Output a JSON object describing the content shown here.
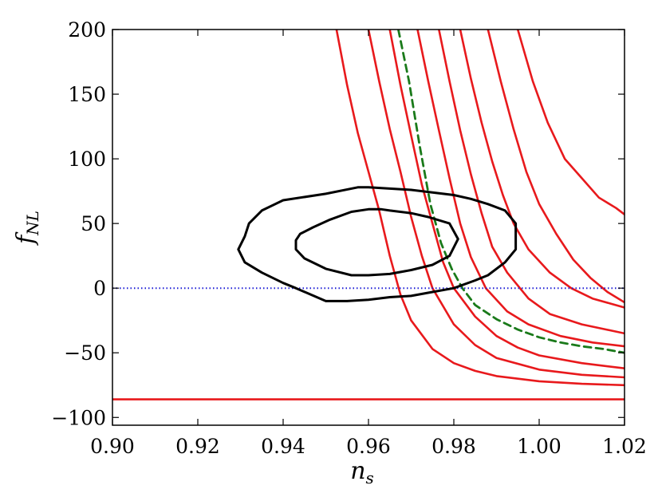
{
  "chart_data": {
    "type": "line",
    "title": "",
    "xlabel": "n_s",
    "ylabel": "f_NL",
    "xlim": [
      0.9,
      1.02
    ],
    "ylim": [
      -106,
      200
    ],
    "x_ticks": [
      0.9,
      0.92,
      0.94,
      0.96,
      0.98,
      1.0,
      1.02
    ],
    "x_tick_labels": [
      "0.90",
      "0.92",
      "0.94",
      "0.96",
      "0.98",
      "1.00",
      "1.02"
    ],
    "y_ticks": [
      200,
      150,
      100,
      50,
      0,
      -50,
      -100
    ],
    "y_tick_labels": [
      "200",
      "150",
      "100",
      "50",
      "0",
      "−50",
      "−100"
    ],
    "grid": false,
    "legend": "none",
    "colors": {
      "red_curves": "#e8191c",
      "contours": "#000000",
      "dashed": "#1a7a1a",
      "dotted": "#1f1fd6"
    },
    "series": [
      {
        "id": "red-1",
        "style": "solid",
        "color": "red",
        "x": [
          0.9525,
          0.955,
          0.9575,
          0.96,
          0.9625,
          0.965,
          0.9675,
          0.97,
          0.975,
          0.98,
          0.985,
          0.99,
          1.0,
          1.01,
          1.02
        ],
        "y": [
          200,
          157,
          120,
          90,
          60,
          25,
          -5,
          -25,
          -47,
          -58,
          -64,
          -68,
          -72,
          -74,
          -75
        ]
      },
      {
        "id": "red-2",
        "style": "solid",
        "color": "red",
        "x": [
          0.96,
          0.9625,
          0.965,
          0.9675,
          0.97,
          0.9725,
          0.975,
          0.98,
          0.985,
          0.99,
          1.0,
          1.01,
          1.02
        ],
        "y": [
          200,
          160,
          123,
          90,
          55,
          25,
          0,
          -28,
          -44,
          -54,
          -63,
          -67,
          -69
        ]
      },
      {
        "id": "red-3",
        "style": "solid",
        "color": "red",
        "x": [
          0.965,
          0.9675,
          0.97,
          0.9725,
          0.975,
          0.9775,
          0.98,
          0.985,
          0.99,
          0.995,
          1.0,
          1.01,
          1.02
        ],
        "y": [
          200,
          157,
          118,
          80,
          50,
          20,
          0,
          -22,
          -37,
          -46,
          -52,
          -58,
          -62
        ]
      },
      {
        "id": "red-4",
        "style": "solid",
        "color": "red",
        "x": [
          0.9715,
          0.974,
          0.9765,
          0.979,
          0.9815,
          0.984,
          0.9875,
          0.9925,
          0.9975,
          1.005,
          1.0125,
          1.02
        ],
        "y": [
          200,
          160,
          122,
          85,
          50,
          24,
          0,
          -18,
          -28,
          -37,
          -42,
          -45
        ]
      },
      {
        "id": "red-5",
        "style": "solid",
        "color": "red",
        "x": [
          0.9765,
          0.979,
          0.9815,
          0.984,
          0.9865,
          0.989,
          0.9925,
          0.9975,
          1.0025,
          1.01,
          1.02
        ],
        "y": [
          200,
          160,
          122,
          88,
          58,
          32,
          12,
          -8,
          -20,
          -28,
          -35
        ]
      },
      {
        "id": "red-6",
        "style": "solid",
        "color": "red",
        "x": [
          0.9815,
          0.984,
          0.9865,
          0.989,
          0.9915,
          0.994,
          0.9975,
          1.0025,
          1.0075,
          1.0125,
          1.02
        ],
        "y": [
          200,
          162,
          128,
          98,
          72,
          50,
          30,
          12,
          0,
          -8,
          -15
        ]
      },
      {
        "id": "red-7",
        "style": "solid",
        "color": "red",
        "x": [
          0.988,
          0.991,
          0.994,
          0.997,
          1.0,
          1.004,
          1.008,
          1.012,
          1.016,
          1.02
        ],
        "y": [
          200,
          160,
          123,
          90,
          65,
          42,
          22,
          8,
          -3,
          -11
        ]
      },
      {
        "id": "red-8",
        "style": "solid",
        "color": "red",
        "x": [
          0.995,
          0.9985,
          1.002,
          1.006,
          1.01,
          1.014,
          1.018,
          1.02
        ],
        "y": [
          200,
          160,
          128,
          100,
          85,
          70,
          62,
          57
        ]
      },
      {
        "id": "red-flat",
        "style": "solid",
        "color": "red",
        "x": [
          0.9,
          1.02
        ],
        "y": [
          -86,
          -86
        ]
      },
      {
        "id": "green-dashed",
        "style": "dashed",
        "color": "green",
        "x": [
          0.967,
          0.9695,
          0.972,
          0.9745,
          0.977,
          0.9795,
          0.982,
          0.985,
          0.99,
          0.995,
          1.0,
          1.005,
          1.01,
          1.015,
          1.02
        ],
        "y": [
          200,
          160,
          110,
          65,
          35,
          15,
          0,
          -13,
          -24,
          -32,
          -38,
          -42,
          -45,
          -47,
          -50
        ]
      },
      {
        "id": "blue-dotted",
        "style": "dotted",
        "color": "blue",
        "x": [
          0.9,
          1.02
        ],
        "y": [
          0,
          0
        ]
      },
      {
        "id": "contour-outer",
        "style": "closed",
        "color": "black",
        "x": [
          0.943,
          0.95,
          0.955,
          0.96,
          0.965,
          0.97,
          0.975,
          0.98,
          0.985,
          0.988,
          0.992,
          0.9945,
          0.9945,
          0.992,
          0.988,
          0.984,
          0.98,
          0.975,
          0.97,
          0.965,
          0.96,
          0.9575,
          0.95,
          0.94,
          0.935,
          0.932,
          0.931,
          0.9295,
          0.931,
          0.935,
          0.94,
          0.943
        ],
        "y": [
          0,
          -10,
          -10,
          -9,
          -7,
          -6,
          -3,
          0,
          6,
          10,
          20,
          30,
          50,
          60,
          65,
          69,
          72,
          74,
          76,
          77,
          78,
          78,
          73,
          68,
          60,
          50,
          40,
          30,
          20,
          12,
          4,
          0
        ]
      },
      {
        "id": "contour-inner",
        "style": "closed",
        "color": "black",
        "x": [
          0.956,
          0.96,
          0.965,
          0.97,
          0.975,
          0.979,
          0.981,
          0.979,
          0.974,
          0.97,
          0.965,
          0.963,
          0.96,
          0.956,
          0.951,
          0.947,
          0.944,
          0.943,
          0.943,
          0.945,
          0.95,
          0.956
        ],
        "y": [
          10,
          10,
          11,
          14,
          18,
          25,
          38,
          50,
          55,
          58,
          60,
          61,
          61,
          59,
          53,
          47,
          42,
          37,
          30,
          23,
          15,
          10
        ]
      }
    ]
  }
}
